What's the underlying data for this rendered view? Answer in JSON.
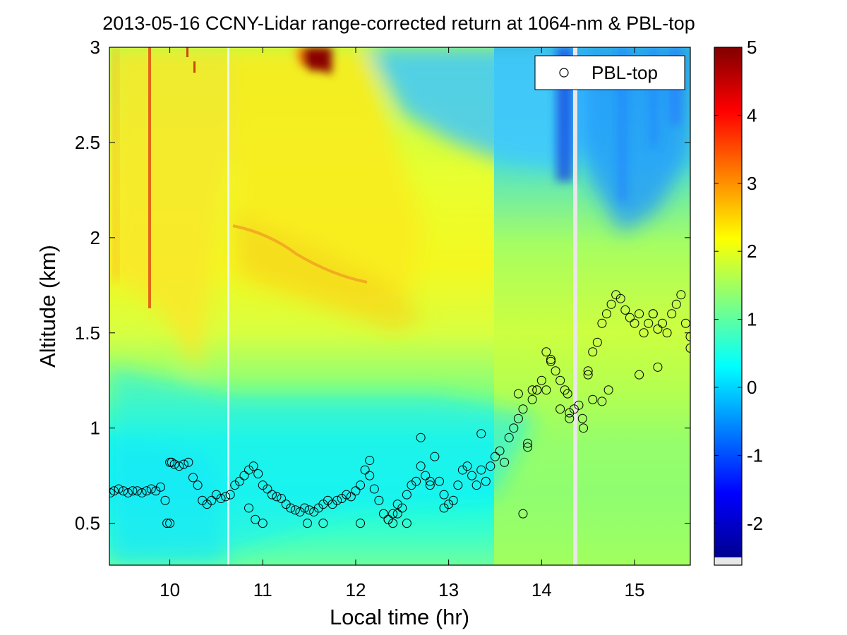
{
  "chart_data": {
    "type": "heatmap",
    "title": "2013-05-16 CCNY-Lidar range-corrected return at 1064-nm & PBL-top",
    "xlabel": "Local time (hr)",
    "ylabel": "Altitude (km)",
    "xlim": [
      9.35,
      15.6
    ],
    "ylim": [
      0.28,
      3.0
    ],
    "xticks": [
      10,
      11,
      12,
      13,
      14,
      15
    ],
    "xtick_labels": [
      "10",
      "11",
      "12",
      "13",
      "14",
      "15"
    ],
    "yticks": [
      0.5,
      1,
      1.5,
      2,
      2.5,
      3
    ],
    "ytick_labels": [
      "0.5",
      "1",
      "1.5",
      "2",
      "2.5",
      "3"
    ],
    "colorbar": {
      "colormap": "jet",
      "range": [
        -2.5,
        5
      ],
      "ticks": [
        -2,
        -1,
        0,
        1,
        2,
        3,
        4,
        5
      ],
      "tick_labels": [
        "-2",
        "-1",
        "0",
        "1",
        "2",
        "3",
        "4",
        "5"
      ]
    },
    "legend": {
      "location": "top-right",
      "entries": [
        "PBL-top"
      ]
    },
    "colors": {
      "jet": [
        "#00008f",
        "#0000ff",
        "#0080ff",
        "#00ffff",
        "#80ff80",
        "#ffff00",
        "#ff8000",
        "#ff0000",
        "#800000"
      ]
    },
    "data_gaps_hr": [
      10.65,
      14.38
    ],
    "series": [
      {
        "name": "PBL-top",
        "marker": "open-circle",
        "x": [
          9.36,
          9.4,
          9.45,
          9.5,
          9.55,
          9.6,
          9.65,
          9.7,
          9.75,
          9.8,
          9.85,
          9.9,
          9.95,
          10.0,
          10.02,
          10.05,
          10.1,
          10.15,
          10.2,
          10.25,
          10.3,
          10.35,
          10.4,
          10.45,
          10.5,
          10.55,
          10.6,
          10.65,
          10.7,
          10.75,
          10.8,
          10.85,
          10.9,
          10.95,
          11.0,
          11.05,
          11.1,
          11.15,
          11.2,
          11.25,
          11.3,
          11.35,
          11.4,
          11.45,
          11.5,
          11.55,
          11.6,
          11.65,
          11.7,
          11.75,
          11.8,
          11.85,
          11.9,
          11.95,
          12.0,
          12.05,
          12.1,
          12.15,
          12.2,
          12.25,
          12.3,
          12.35,
          12.4,
          12.45,
          12.5,
          12.55,
          12.6,
          12.65,
          12.7,
          12.75,
          12.8,
          12.85,
          12.9,
          12.95,
          13.0,
          13.05,
          13.1,
          13.15,
          13.2,
          13.25,
          13.3,
          13.35,
          13.4,
          13.45,
          13.5,
          13.55,
          13.6,
          13.65,
          13.7,
          13.75,
          13.8,
          13.85,
          13.9,
          13.95,
          14.0,
          14.05,
          14.1,
          14.15,
          14.2,
          14.25,
          14.3,
          14.35,
          14.4,
          14.45,
          14.5,
          14.55,
          14.6,
          14.65,
          14.7,
          14.75,
          14.8,
          14.85,
          14.9,
          14.95,
          15.0,
          15.05,
          15.1,
          15.15,
          15.2,
          15.25,
          15.3,
          15.35,
          15.4,
          15.45,
          15.5,
          15.55,
          15.6,
          9.97,
          10.0,
          10.85,
          10.92,
          11.0,
          11.48,
          11.65,
          12.05,
          12.35,
          12.4,
          12.45,
          12.55,
          12.7,
          12.95,
          13.35,
          13.8,
          13.85,
          13.9,
          14.05,
          14.28,
          14.3,
          14.44,
          14.5,
          14.65,
          14.72,
          15.05,
          15.25,
          15.6,
          13.75,
          13.95,
          14.1,
          14.55,
          14.2,
          15.2,
          12.15,
          12.8
        ],
        "y": [
          0.66,
          0.67,
          0.68,
          0.67,
          0.66,
          0.67,
          0.67,
          0.66,
          0.67,
          0.68,
          0.67,
          0.69,
          0.62,
          0.82,
          0.82,
          0.81,
          0.8,
          0.81,
          0.82,
          0.74,
          0.7,
          0.62,
          0.6,
          0.62,
          0.65,
          0.63,
          0.64,
          0.65,
          0.7,
          0.72,
          0.75,
          0.78,
          0.8,
          0.76,
          0.7,
          0.68,
          0.65,
          0.64,
          0.63,
          0.6,
          0.58,
          0.57,
          0.56,
          0.58,
          0.57,
          0.56,
          0.58,
          0.6,
          0.62,
          0.6,
          0.62,
          0.63,
          0.65,
          0.64,
          0.67,
          0.7,
          0.78,
          0.75,
          0.68,
          0.62,
          0.55,
          0.52,
          0.5,
          0.55,
          0.58,
          0.65,
          0.7,
          0.72,
          0.8,
          0.75,
          0.7,
          0.85,
          0.72,
          0.65,
          0.6,
          0.62,
          0.7,
          0.78,
          0.8,
          0.75,
          0.7,
          0.78,
          0.72,
          0.8,
          0.85,
          0.88,
          0.82,
          0.95,
          1.0,
          1.05,
          1.1,
          0.92,
          1.15,
          1.2,
          1.25,
          1.4,
          1.35,
          1.3,
          1.25,
          1.2,
          1.05,
          1.1,
          1.12,
          1.0,
          1.3,
          1.4,
          1.45,
          1.55,
          1.6,
          1.65,
          1.7,
          1.68,
          1.62,
          1.58,
          1.55,
          1.6,
          1.5,
          1.55,
          1.6,
          1.52,
          1.55,
          1.5,
          1.6,
          1.65,
          1.7,
          1.55,
          1.42,
          0.5,
          0.5,
          0.58,
          0.52,
          0.5,
          0.5,
          0.5,
          0.5,
          0.52,
          0.55,
          0.6,
          0.5,
          0.95,
          0.58,
          0.97,
          0.55,
          0.9,
          1.2,
          1.2,
          1.18,
          1.08,
          1.05,
          1.28,
          1.14,
          1.2,
          1.28,
          1.32,
          1.48,
          1.18,
          1.2,
          1.36,
          1.15,
          1.1,
          1.6,
          0.83,
          0.72
        ]
      }
    ]
  }
}
